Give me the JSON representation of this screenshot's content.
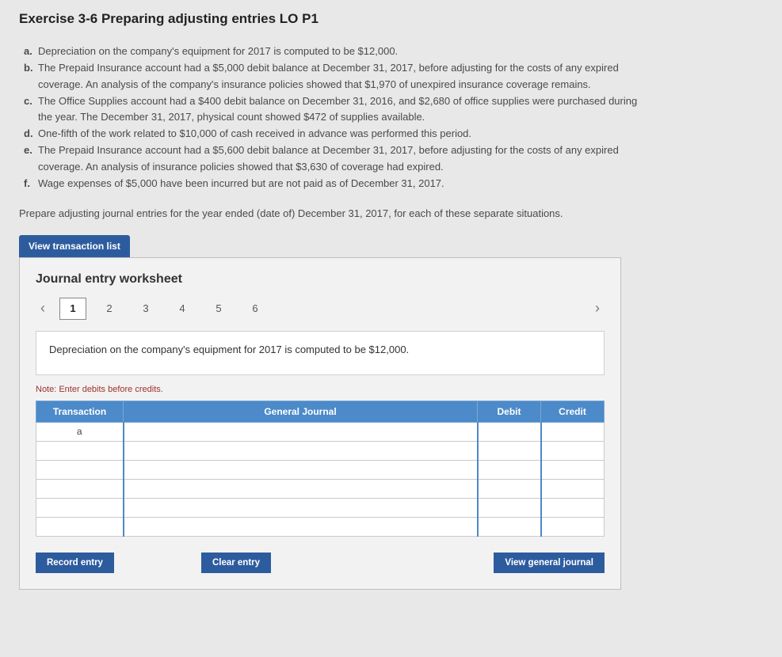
{
  "title": "Exercise 3-6 Preparing adjusting entries LO P1",
  "items": {
    "a": {
      "marker": "a.",
      "text": "Depreciation on the company's equipment for 2017 is computed to be $12,000."
    },
    "b": {
      "marker": "b.",
      "line1": "The Prepaid Insurance account had a $5,000 debit balance at December 31, 2017, before adjusting for the costs of any expired",
      "line2": "coverage. An analysis of the company's insurance policies showed that $1,970 of unexpired insurance coverage remains."
    },
    "c": {
      "marker": "c.",
      "line1": "The Office Supplies account had a $400 debit balance on December 31, 2016, and $2,680 of office supplies were purchased during",
      "line2": "the year. The December 31, 2017, physical count showed $472 of supplies available."
    },
    "d": {
      "marker": "d.",
      "text": "One-fifth of the work related to $10,000 of cash received in advance was performed this period."
    },
    "e": {
      "marker": "e.",
      "line1": "The Prepaid Insurance account had a $5,600 debit balance at December 31, 2017, before adjusting for the costs of any expired",
      "line2": "coverage. An analysis of insurance policies showed that $3,630 of coverage had expired."
    },
    "f": {
      "marker": "f.",
      "text": "Wage expenses of $5,000 have been incurred but are not paid as of December 31, 2017."
    }
  },
  "instruction": "Prepare adjusting journal entries for the year ended (date of) December 31, 2017, for each of these separate situations.",
  "buttons": {
    "view_list": "View transaction list",
    "record": "Record entry",
    "clear": "Clear entry",
    "view_gj": "View general journal"
  },
  "worksheet": {
    "title": "Journal entry worksheet",
    "tabs": [
      "1",
      "2",
      "3",
      "4",
      "5",
      "6"
    ],
    "active_tab": 0,
    "prompt": "Depreciation on the company's equipment for 2017 is computed to be $12,000.",
    "note": "Note: Enter debits before credits.",
    "headers": {
      "transaction": "Transaction",
      "gj": "General Journal",
      "debit": "Debit",
      "credit": "Credit"
    },
    "rows": [
      {
        "transaction": "a",
        "gj": "",
        "debit": "",
        "credit": ""
      },
      {
        "transaction": "",
        "gj": "",
        "debit": "",
        "credit": ""
      },
      {
        "transaction": "",
        "gj": "",
        "debit": "",
        "credit": ""
      },
      {
        "transaction": "",
        "gj": "",
        "debit": "",
        "credit": ""
      },
      {
        "transaction": "",
        "gj": "",
        "debit": "",
        "credit": ""
      },
      {
        "transaction": "",
        "gj": "",
        "debit": "",
        "credit": ""
      }
    ]
  },
  "colors": {
    "btn_bg": "#2d5c9e",
    "th_bg": "#4c8ac9",
    "note_color": "#a03030",
    "page_bg": "#e8e8e8"
  }
}
